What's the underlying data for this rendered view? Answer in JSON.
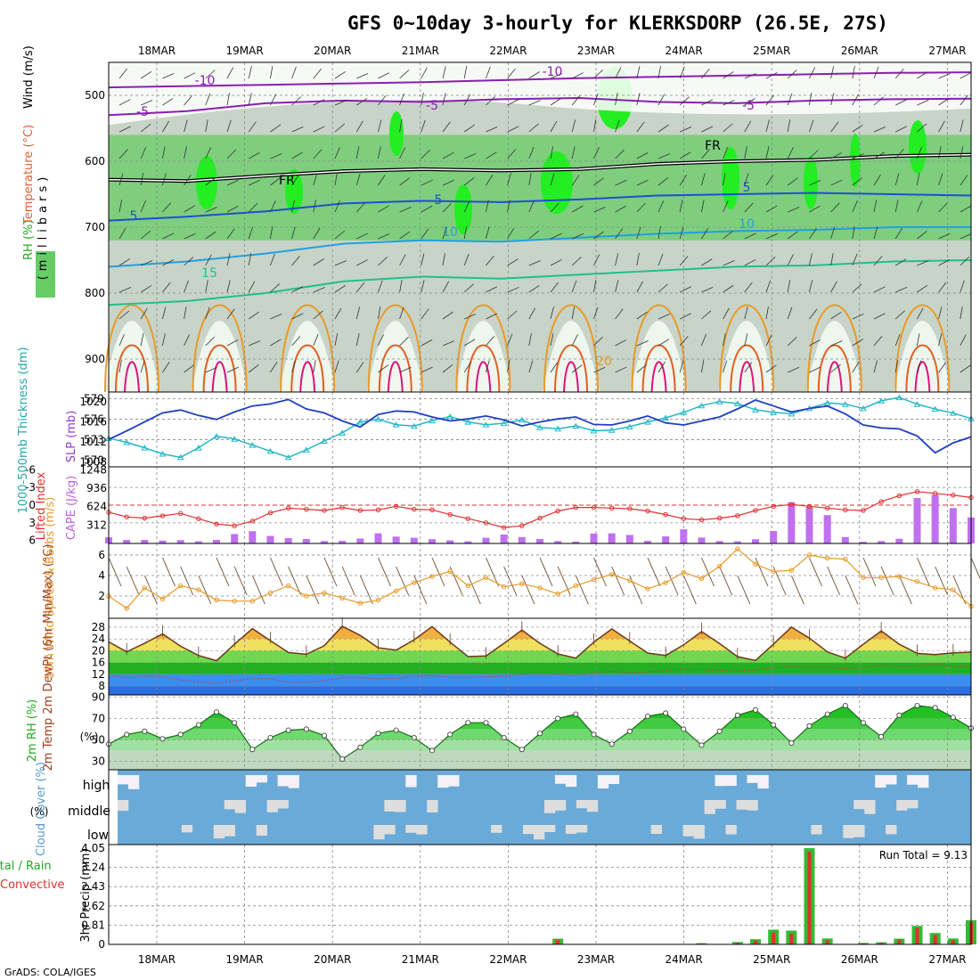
{
  "title": "GFS 0~10day 3-hourly for KLERKSDORP (26.5E, 27S)",
  "credit": "GrADS: COLA/IGES",
  "dates": [
    "18MAR",
    "19MAR",
    "20MAR",
    "21MAR",
    "22MAR",
    "23MAR",
    "24MAR",
    "25MAR",
    "26MAR",
    "27MAR"
  ],
  "colors": {
    "rh_light": "#eef6ee",
    "rh_mid": "#c8d4c8",
    "rh_green": "#66cc66",
    "rh_bright": "#22ee22",
    "purple": "#8a1fb0",
    "blue": "#1f4fd0",
    "cyan": "#22a0e0",
    "teal": "#22c08a",
    "orange": "#e89a28",
    "magenta": "#e0107a"
  },
  "chart_data": [
    {
      "type": "area",
      "panel": "upper-air",
      "ylabel_parts": [
        "Wind (m/s)",
        "Temperature (°C)",
        "RH (%)"
      ],
      "y_axis_label": "(millibars)",
      "yticks": [
        "500",
        "600",
        "700",
        "800",
        "900"
      ],
      "ylim": [
        950,
        450
      ],
      "temperature_contours": [
        {
          "label": "-10",
          "levels_mb": [
            488,
            486,
            484,
            482,
            480,
            477,
            474,
            472,
            470,
            468,
            466,
            465
          ]
        },
        {
          "label": "-5",
          "levels_mb": [
            530,
            524,
            512,
            508,
            510,
            506,
            504,
            510,
            512,
            508,
            506,
            505
          ]
        },
        {
          "label": "FR",
          "levels_mb": [
            628,
            630,
            622,
            615,
            612,
            614,
            612,
            604,
            600,
            598,
            592,
            590
          ]
        },
        {
          "label": "5",
          "levels_mb": [
            690,
            684,
            676,
            664,
            660,
            662,
            658,
            652,
            650,
            648,
            650,
            652
          ]
        },
        {
          "label": "10",
          "levels_mb": [
            760,
            752,
            740,
            725,
            720,
            722,
            716,
            710,
            706,
            704,
            700,
            700
          ]
        },
        {
          "label": "15",
          "levels_mb": [
            818,
            812,
            800,
            782,
            775,
            778,
            772,
            766,
            760,
            758,
            752,
            750
          ]
        }
      ],
      "contour_labels": [
        "-10",
        "-5",
        "-10",
        "-5",
        "-5",
        "FR",
        "FR",
        "5",
        "5",
        "5",
        "10",
        "10",
        "15",
        "20"
      ]
    },
    {
      "type": "line",
      "panel": "thickness-slp",
      "ylabel": "1000-500mb Thickness (dm)",
      "y2label": "SLP (mb)",
      "yticks": [
        "579",
        "576",
        "573",
        "570"
      ],
      "y2ticks": [
        "1020",
        "1016",
        "1012",
        "1008"
      ],
      "series": [
        {
          "name": "Thickness",
          "values": [
            573.2,
            572.6,
            571.8,
            570.9,
            570.4,
            571.8,
            573.5,
            573.1,
            572.2,
            571.3,
            570.4,
            571.5,
            572.8,
            574.0,
            575.6,
            576.0,
            575.2,
            575.0,
            575.8,
            576.4,
            575.6,
            575.2,
            575.4,
            575.9,
            574.8,
            574.6,
            575.0,
            574.3,
            574.4,
            574.9,
            575.6,
            576.2,
            577.0,
            578.0,
            578.6,
            578.3,
            577.4,
            577.0,
            576.8,
            577.6,
            578.4,
            578.2,
            577.6,
            578.7,
            579.2,
            578.2,
            577.5,
            576.9,
            576.1
          ]
        },
        {
          "name": "SLP",
          "values": [
            1012.5,
            1014.2,
            1016.0,
            1017.8,
            1018.4,
            1017.3,
            1016.5,
            1018.0,
            1019.2,
            1019.6,
            1020.5,
            1018.6,
            1017.8,
            1016.2,
            1015.0,
            1017.5,
            1018.2,
            1018.0,
            1017.0,
            1016.2,
            1016.6,
            1017.2,
            1016.4,
            1015.2,
            1016.0,
            1016.6,
            1017.0,
            1015.5,
            1015.4,
            1016.2,
            1017.2,
            1015.8,
            1015.4,
            1016.2,
            1017.0,
            1018.6,
            1020.4,
            1019.2,
            1018.0,
            1018.7,
            1019.2,
            1017.6,
            1015.4,
            1014.8,
            1014.6,
            1013.2,
            1009.8,
            1011.8,
            1013.0
          ]
        }
      ]
    },
    {
      "type": "bar",
      "panel": "lifted-cape",
      "ylabel": "Lifted Index",
      "y2label": "CAPE (J/kg)",
      "yticks": [
        "-6",
        "-3",
        "0",
        "3",
        "6"
      ],
      "y2ticks": [
        "1248",
        "936",
        "624",
        "312"
      ],
      "series": [
        {
          "name": "Lifted Index",
          "values": [
            1.2,
            2.0,
            2.2,
            1.8,
            1.4,
            2.3,
            3.2,
            3.5,
            2.7,
            1.3,
            0.5,
            0.7,
            0.9,
            0.4,
            0.9,
            0.8,
            0.2,
            0.7,
            0.8,
            1.6,
            2.3,
            3.0,
            3.8,
            3.5,
            2.2,
            1.0,
            0.4,
            0.4,
            0.5,
            0.6,
            1.0,
            1.6,
            2.3,
            2.5,
            2.2,
            1.8,
            0.9,
            0.2,
            -0.1,
            0.2,
            0.5,
            0.8,
            0.9,
            -0.6,
            -1.6,
            -2.3,
            -2.0,
            -1.7,
            -1.3
          ]
        },
        {
          "name": "CAPE",
          "values": [
            104,
            60,
            60,
            48,
            56,
            36,
            60,
            160,
            208,
            128,
            92,
            76,
            40,
            44,
            84,
            172,
            116,
            96,
            72,
            52,
            36,
            96,
            152,
            108,
            76,
            40,
            32,
            168,
            172,
            144,
            44,
            120,
            240,
            100,
            40,
            36,
            72,
            212,
            700,
            620,
            480,
            108,
            28,
            40,
            80,
            772,
            824,
            600,
            440
          ]
        }
      ]
    },
    {
      "type": "line",
      "panel": "wind-10m",
      "ylabel": "10m Wind Speed & Barbs (m/s)",
      "yticks": [
        "6",
        "4",
        "2"
      ],
      "series": [
        {
          "name": "10m Wind Speed",
          "values": [
            2.0,
            0.8,
            2.8,
            1.7,
            3.0,
            2.6,
            1.6,
            1.5,
            1.5,
            2.3,
            3.0,
            2.0,
            2.3,
            1.8,
            1.3,
            1.6,
            2.5,
            3.3,
            3.9,
            4.4,
            3.0,
            3.8,
            2.9,
            3.2,
            2.8,
            2.2,
            3.0,
            3.6,
            4.1,
            3.5,
            2.7,
            3.3,
            4.3,
            3.7,
            4.9,
            6.6,
            5.1,
            4.4,
            4.5,
            6.0,
            5.7,
            5.6,
            3.8,
            3.8,
            3.9,
            3.4,
            2.8,
            2.6,
            1.0
          ]
        }
      ]
    },
    {
      "type": "area",
      "panel": "temp-dewpt",
      "ylabel": "2m Temp 2m DewPt (6hr Min/Max) (°C)",
      "yticks": [
        "28",
        "24",
        "20",
        "16",
        "12",
        "8"
      ],
      "series": [
        {
          "name": "2m Temp",
          "values": [
            23.0,
            19.6,
            22.5,
            25.7,
            21.5,
            18.4,
            16.6,
            22.2,
            27.5,
            23.4,
            19.4,
            18.8,
            21.7,
            28.3,
            25.2,
            21.0,
            20.2,
            23.7,
            28.2,
            22.9,
            18.0,
            18.2,
            22.5,
            27.0,
            22.5,
            18.9,
            17.5,
            22.9,
            27.4,
            23.3,
            19.2,
            18.4,
            22.0,
            26.5,
            22.4,
            18.0,
            16.7,
            22.2,
            28.0,
            24.3,
            19.6,
            17.5,
            22.2,
            26.7,
            22.2,
            19.1,
            18.7,
            19.3,
            19.5
          ]
        },
        {
          "name": "2m DewPt",
          "values": [
            11.5,
            10.7,
            11.5,
            11.2,
            10.1,
            9.4,
            9.0,
            9.8,
            10.5,
            10.5,
            9.3,
            9.3,
            9.9,
            10.8,
            10.8,
            10.5,
            10.6,
            11.4,
            11.6,
            11.0,
            11.0,
            11.2,
            11.3,
            12.1,
            12.2,
            12.0,
            11.6,
            12.6,
            13.0,
            12.6,
            12.8,
            13.3,
            13.8,
            13.6,
            13.4,
            13.1,
            13.5,
            14.1,
            14.6,
            14.3,
            14.5,
            13.9,
            14.3,
            15.1,
            14.8,
            14.9,
            15.3,
            14.7,
            14.5
          ]
        }
      ]
    },
    {
      "type": "area",
      "panel": "rh-2m",
      "ylabel": "2m RH (%)",
      "yticks": [
        "90",
        "70",
        "50",
        "30"
      ],
      "series": [
        {
          "name": "2m RH",
          "values": [
            46,
            55,
            58,
            51,
            55,
            64,
            76,
            66,
            41,
            52,
            59,
            60,
            54,
            32,
            43,
            56,
            59,
            52,
            40,
            55,
            66,
            66,
            52,
            41,
            56,
            70,
            74,
            55,
            46,
            58,
            72,
            75,
            60,
            45,
            58,
            73,
            78,
            64,
            47,
            63,
            74,
            82,
            66,
            53,
            73,
            82,
            80,
            71,
            61
          ]
        }
      ]
    },
    {
      "type": "heatmap",
      "panel": "cloud-cover",
      "ylabel": "Cloud Cover (%)",
      "levels": [
        "high",
        "middle",
        "low"
      ]
    },
    {
      "type": "bar",
      "panel": "precip",
      "ylabel": "3hr Precip (mm)",
      "side_label": [
        "Total / Rain",
        "Convective"
      ],
      "yticks": [
        "4.05",
        "3.24",
        "2.43",
        "1.62",
        "0.81",
        "0"
      ],
      "annotation": "Run Total = 9.13",
      "series": [
        {
          "name": "Total",
          "values": [
            0,
            0,
            0,
            0,
            0,
            0,
            0,
            0,
            0,
            0,
            0,
            0,
            0,
            0,
            0,
            0,
            0,
            0,
            0,
            0,
            0,
            0,
            0,
            0.02,
            0,
            0.24,
            0,
            0,
            0,
            0,
            0,
            0,
            0,
            0.05,
            0,
            0.1,
            0.22,
            0.62,
            0.58,
            4.05,
            0.25,
            0,
            0.06,
            0.09,
            0.24,
            0.78,
            0.48,
            0.25,
            1.02
          ]
        },
        {
          "name": "Convective",
          "values": [
            0,
            0,
            0,
            0,
            0,
            0,
            0,
            0,
            0,
            0,
            0,
            0,
            0,
            0,
            0,
            0,
            0,
            0,
            0,
            0,
            0,
            0,
            0,
            0.01,
            0,
            0.18,
            0,
            0,
            0,
            0,
            0,
            0,
            0,
            0.03,
            0,
            0.06,
            0.15,
            0.5,
            0.45,
            3.9,
            0.18,
            0,
            0.04,
            0.06,
            0.2,
            0.7,
            0.4,
            0.18,
            0.92
          ]
        }
      ]
    }
  ]
}
